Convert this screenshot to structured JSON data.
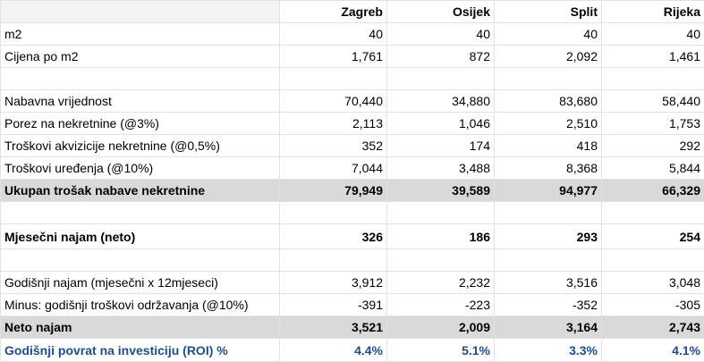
{
  "header": {
    "corner": "",
    "cities": [
      "Zagreb",
      "Osijek",
      "Split",
      "Rijeka"
    ]
  },
  "rows": [
    {
      "label": "m2",
      "values": [
        "40",
        "40",
        "40",
        "40"
      ]
    },
    {
      "label": "Cijena po m2",
      "values": [
        "1,761",
        "872",
        "2,092",
        "1,461"
      ]
    },
    {
      "label": "",
      "values": [
        "",
        "",
        "",
        ""
      ]
    },
    {
      "label": "Nabavna vrijednost",
      "values": [
        "70,440",
        "34,880",
        "83,680",
        "58,440"
      ]
    },
    {
      "label": "Porez na nekretnine (@3%)",
      "values": [
        "2,113",
        "1,046",
        "2,510",
        "1,753"
      ]
    },
    {
      "label": "Troškovi akvizicije nekretnine (@0,5%)",
      "values": [
        "352",
        "174",
        "418",
        "292"
      ]
    },
    {
      "label": "Troškovi uređenja (@10%)",
      "values": [
        "7,044",
        "3,488",
        "8,368",
        "5,844"
      ]
    },
    {
      "label": "Ukupan trošak nabave nekretnine",
      "values": [
        "79,949",
        "39,589",
        "94,977",
        "66,329"
      ]
    },
    {
      "label": "",
      "values": [
        "",
        "",
        "",
        ""
      ]
    },
    {
      "label": "Mjesečni najam (neto)",
      "values": [
        "326",
        "186",
        "293",
        "254"
      ]
    },
    {
      "label": "",
      "values": [
        "",
        "",
        "",
        ""
      ]
    },
    {
      "label": "Godišnji najam (mjesečni x 12mjeseci)",
      "values": [
        "3,912",
        "2,232",
        "3,516",
        "3,048"
      ]
    },
    {
      "label": "Minus: godišnji troškovi održavanja (@10%)",
      "values": [
        "-391",
        "-223",
        "-352",
        "-305"
      ]
    },
    {
      "label": "Neto najam",
      "values": [
        "3,521",
        "2,009",
        "3,164",
        "2,743"
      ]
    },
    {
      "label": "Godišnji povrat na investiciju (ROI) %",
      "values": [
        "4.4%",
        "5.1%",
        "3.3%",
        "4.1%"
      ]
    }
  ],
  "colors": {
    "header_bg": "#f3f3f3",
    "total_bg": "#d9d9d9",
    "roi_text": "#1f4e8c",
    "gridline": "#e2e2e2"
  }
}
